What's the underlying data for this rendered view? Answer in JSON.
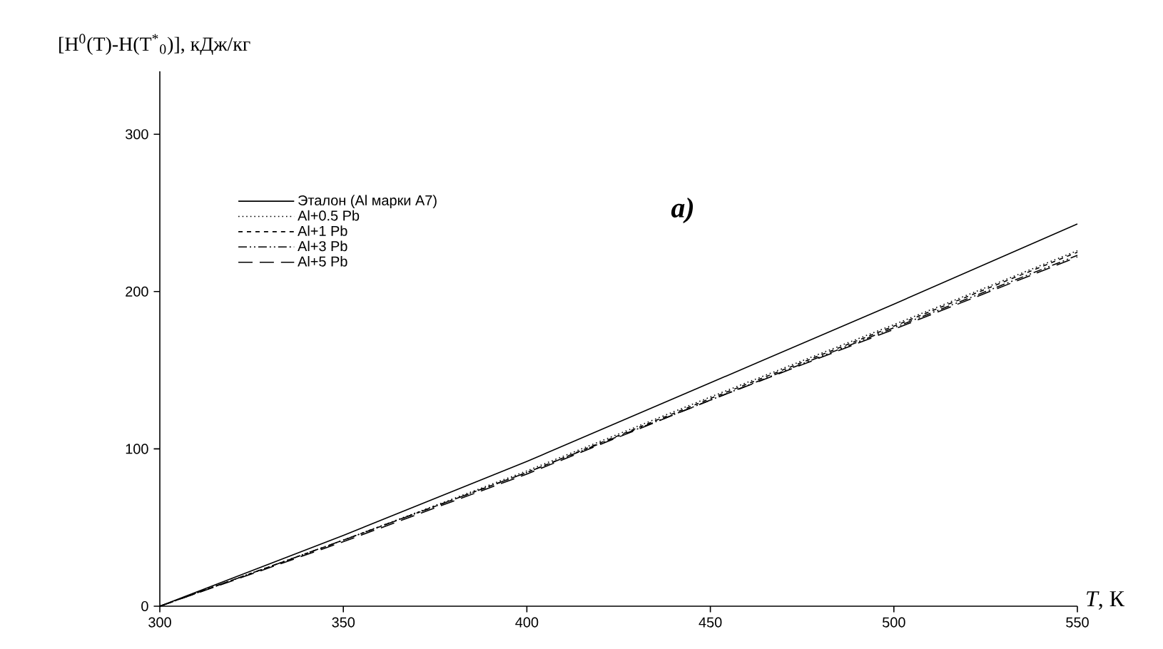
{
  "chart_data": {
    "type": "line",
    "xlabel": "*T*, К",
    "ylabel": "[H$^{0}$(T)-H(T$^{*}$$_{0}$)], кДж/кг",
    "annotations": [
      "*a)*"
    ],
    "x": [
      300,
      350,
      400,
      450,
      500,
      550
    ],
    "xlim": [
      300,
      550
    ],
    "xticks": [
      300,
      350,
      400,
      450,
      500,
      550
    ],
    "ylim": [
      0,
      340
    ],
    "yticks": [
      0,
      100,
      200,
      300
    ],
    "legend": "top left",
    "grid": false,
    "marker": "none",
    "series": [
      {
        "name": "Эталон (Al марки A7)",
        "color": "#000000",
        "line_style": "solid",
        "values": [
          0,
          45,
          92,
          142,
          192,
          243
        ]
      },
      {
        "name": "Al+0.5 Pb",
        "color": "#000000",
        "line_style": "dotted",
        "values": [
          0,
          42,
          86,
          133,
          179,
          226
        ]
      },
      {
        "name": "Al+1 Pb",
        "color": "#000000",
        "line_style": "dashed",
        "values": [
          0,
          42,
          85,
          132,
          178,
          225
        ]
      },
      {
        "name": "Al+3 Pb",
        "color": "#000000",
        "line_style": "dashdotdotted",
        "values": [
          0,
          42,
          85,
          131,
          177,
          223
        ]
      },
      {
        "name": "Al+5 Pb",
        "color": "#000000",
        "line_style": "longdashed",
        "values": [
          0,
          41,
          84,
          131,
          176,
          222
        ]
      }
    ]
  }
}
